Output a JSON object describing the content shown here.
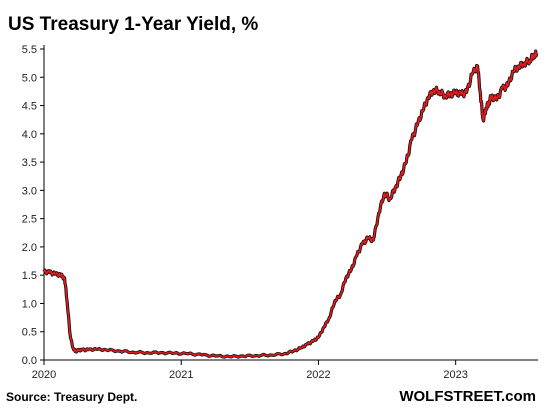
{
  "chart_data": {
    "type": "line",
    "title": "US Treasury 1-Year Yield, %",
    "xlabel": "",
    "ylabel": "",
    "ylim": [
      0,
      5.5
    ],
    "yticks": [
      0.0,
      0.5,
      1.0,
      1.5,
      2.0,
      2.5,
      3.0,
      3.5,
      4.0,
      4.5,
      5.0,
      5.5
    ],
    "ytick_labels": [
      "0.0",
      "0.5",
      "1.0",
      "1.5",
      "2.0",
      "2.5",
      "3.0",
      "3.5",
      "4.0",
      "4.5",
      "5.0",
      "5.5"
    ],
    "xlim": [
      2020.0,
      2023.6
    ],
    "xticks": [
      2020,
      2021,
      2022,
      2023
    ],
    "xtick_labels": [
      "2020",
      "2021",
      "2022",
      "2023"
    ],
    "grid": false,
    "line_colors": {
      "main": "#e41a1c",
      "shadow": "#111111"
    },
    "series": [
      {
        "x": [
          2020.0,
          2020.04,
          2020.08,
          2020.12,
          2020.15,
          2020.17,
          2020.19,
          2020.21,
          2020.23,
          2020.25,
          2020.28,
          2020.32,
          2020.38,
          2020.45,
          2020.55,
          2020.65,
          2020.75,
          2020.85,
          2020.95,
          2021.05,
          2021.15,
          2021.25,
          2021.35,
          2021.45,
          2021.55,
          2021.65,
          2021.75,
          2021.82,
          2021.88,
          2021.92,
          2021.96,
          2022.0,
          2022.04,
          2022.08,
          2022.12,
          2022.16,
          2022.2,
          2022.24,
          2022.28,
          2022.32,
          2022.36,
          2022.4,
          2022.44,
          2022.48,
          2022.52,
          2022.56,
          2022.6,
          2022.64,
          2022.68,
          2022.72,
          2022.76,
          2022.8,
          2022.84,
          2022.88,
          2022.92,
          2022.96,
          2023.0,
          2023.04,
          2023.08,
          2023.12,
          2023.16,
          2023.18,
          2023.2,
          2023.22,
          2023.24,
          2023.26,
          2023.3,
          2023.34,
          2023.38,
          2023.42,
          2023.46,
          2023.5,
          2023.54,
          2023.57,
          2023.59
        ],
        "values": [
          1.56,
          1.55,
          1.52,
          1.5,
          1.45,
          1.0,
          0.45,
          0.22,
          0.15,
          0.17,
          0.18,
          0.18,
          0.19,
          0.18,
          0.16,
          0.14,
          0.13,
          0.13,
          0.12,
          0.11,
          0.09,
          0.07,
          0.06,
          0.07,
          0.08,
          0.09,
          0.11,
          0.16,
          0.22,
          0.28,
          0.33,
          0.4,
          0.58,
          0.75,
          1.05,
          1.15,
          1.45,
          1.6,
          1.85,
          2.05,
          2.15,
          2.12,
          2.6,
          2.95,
          2.85,
          3.05,
          3.25,
          3.5,
          3.9,
          4.15,
          4.4,
          4.65,
          4.78,
          4.75,
          4.68,
          4.7,
          4.72,
          4.7,
          4.73,
          5.05,
          5.2,
          4.7,
          4.25,
          4.45,
          4.55,
          4.65,
          4.6,
          4.8,
          4.85,
          5.1,
          5.2,
          5.25,
          5.3,
          5.4,
          5.42
        ]
      }
    ]
  },
  "footer": {
    "source": "Source: Treasury Dept.",
    "brand": "WOLFSTREET.com"
  }
}
